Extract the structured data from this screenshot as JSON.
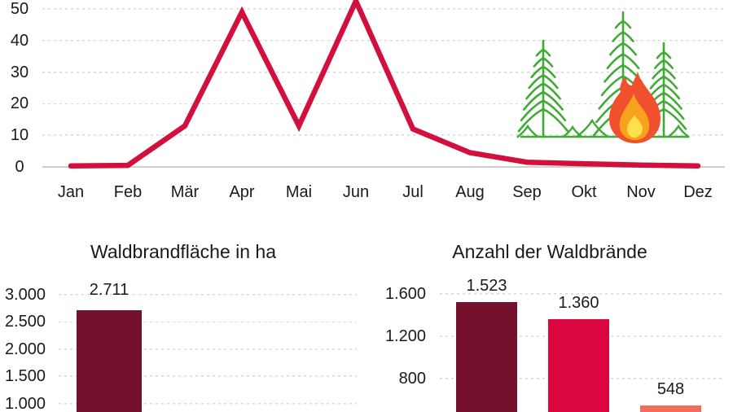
{
  "language": "de",
  "colors": {
    "text": "#1a1a1a",
    "grid_dotted": "#d9d9d9",
    "axis_line": "#cfcfcf",
    "line_series": "#D2103E",
    "bar_dark_maroon": "#75102F",
    "bar_crimson": "#DB0640",
    "bar_salmon": "#EE6F5E"
  },
  "chart_data": [
    {
      "type": "line",
      "title": "",
      "x": [
        "Jan",
        "Feb",
        "Mär",
        "Apr",
        "Mai",
        "Jun",
        "Jul",
        "Aug",
        "Sep",
        "Okt",
        "Nov",
        "Dez"
      ],
      "values": [
        0.3,
        0.5,
        13,
        49,
        13,
        52.5,
        12,
        4.5,
        1.5,
        1,
        0.6,
        0.3
      ],
      "yticks": [
        0,
        10,
        20,
        30,
        40,
        50
      ],
      "ytick_labels": [
        "0",
        "10",
        "20",
        "30",
        "40",
        "50"
      ],
      "ylim": [
        0,
        52.5
      ],
      "grid": "horizontal dotted, solid light axis at 0",
      "line_color": "#D2103E",
      "legend": "none",
      "note": "Jun peak is clipped by the top edge of the image; values estimated from gridlines"
    },
    {
      "type": "bar",
      "title": "Waldbrandfläche in ha",
      "values": [
        2711
      ],
      "value_labels": [
        "2.711"
      ],
      "bar_colors": [
        "#75102F"
      ],
      "yticks": [
        3000,
        2500,
        2000,
        1500,
        1000
      ],
      "ytick_labels": [
        "3.000",
        "2.500",
        "2.000",
        "1.500",
        "1.000"
      ],
      "grid": "horizontal dotted",
      "note": "Chart cropped at bottom edge of image; only first bar visible"
    },
    {
      "type": "bar",
      "title": "Anzahl der Waldbrände",
      "values": [
        1523,
        1360,
        548
      ],
      "value_labels": [
        "1.523",
        "1.360",
        "548"
      ],
      "bar_colors": [
        "#75102F",
        "#DB0640",
        "#EE6F5E"
      ],
      "yticks": [
        1600,
        1200,
        800
      ],
      "ytick_labels": [
        "1.600",
        "1.200",
        "800"
      ],
      "grid": "horizontal dotted",
      "note": "Chart cropped at bottom edge of image; category labels not visible"
    }
  ],
  "illustration": {
    "name": "burning-forest",
    "tree_color": "#3FAB35",
    "flame_outer": "#F1502D",
    "flame_inner": "#F9A21B",
    "flame_core": "#FFE14E"
  }
}
